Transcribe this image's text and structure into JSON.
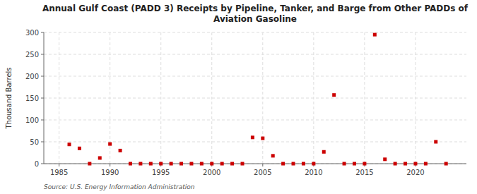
{
  "chart_data": {
    "type": "scatter",
    "title": "Annual Gulf Coast (PADD 3) Receipts by Pipeline, Tanker, and Barge from Other PADDs of\nAviation Gasoline",
    "ylabel": "Thousand Barrels",
    "source": "Source: U.S. Energy Information Administration",
    "x": [
      1986,
      1987,
      1988,
      1989,
      1990,
      1991,
      1992,
      1993,
      1994,
      1995,
      1996,
      1997,
      1998,
      1999,
      2000,
      2001,
      2002,
      2003,
      2004,
      2005,
      2006,
      2007,
      2008,
      2009,
      2010,
      2011,
      2012,
      2013,
      2014,
      2015,
      2016,
      2017,
      2018,
      2019,
      2020,
      2021,
      2022,
      2023
    ],
    "values": [
      44,
      35,
      0,
      13,
      45,
      30,
      0,
      0,
      0,
      0,
      0,
      0,
      0,
      0,
      0,
      0,
      0,
      0,
      60,
      58,
      18,
      0,
      0,
      0,
      0,
      27,
      157,
      0,
      0,
      0,
      295,
      10,
      0,
      0,
      0,
      0,
      50,
      0
    ],
    "color": "#cc0000",
    "marker": "square",
    "xlim": [
      1983.5,
      2025
    ],
    "ylim": [
      0,
      300
    ],
    "xticks": [
      1985,
      1990,
      1995,
      2000,
      2005,
      2010,
      2015,
      2020
    ],
    "yticks": [
      0,
      50,
      100,
      150,
      200,
      250,
      300
    ],
    "grid": true
  }
}
